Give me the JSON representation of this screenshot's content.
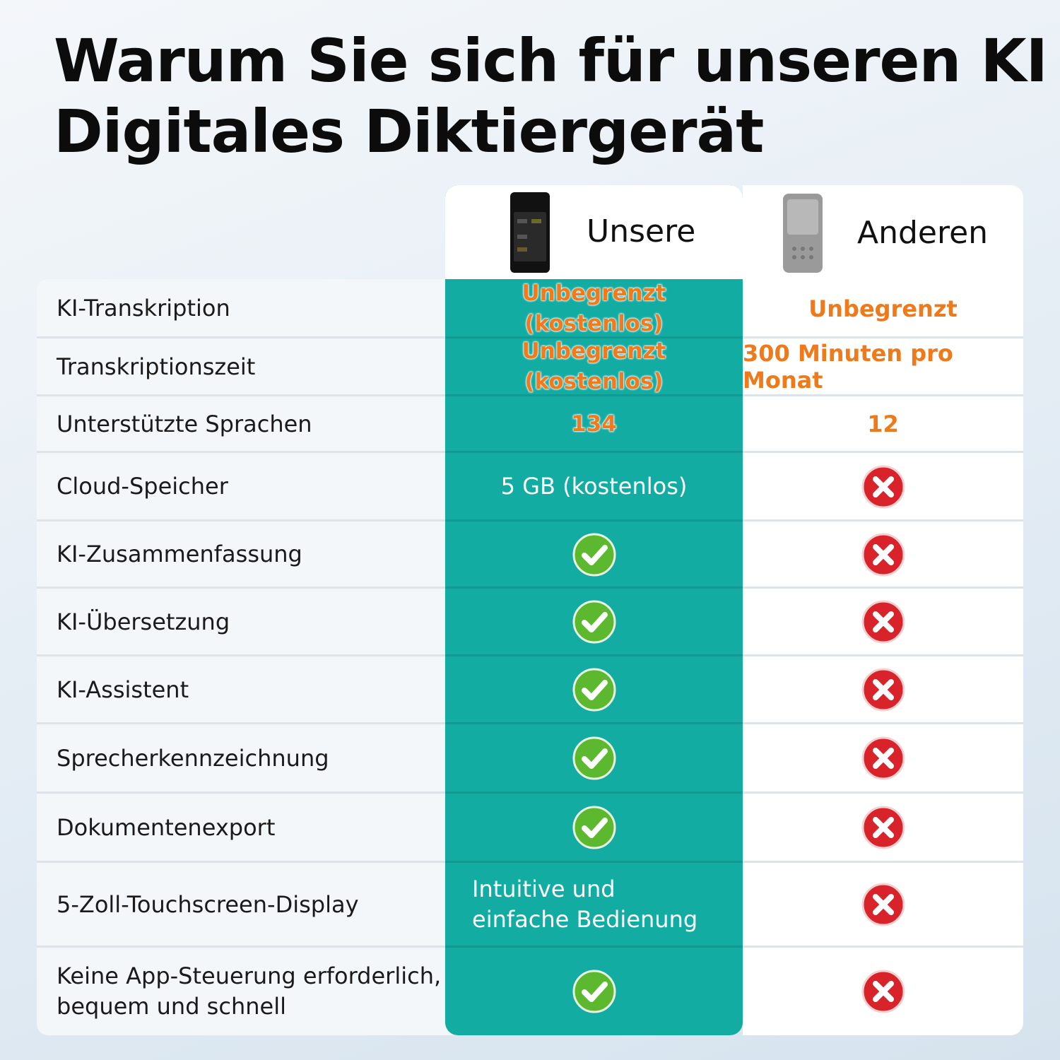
{
  "header": {
    "title_lines": [
      "Warum Sie sich für unseren KI",
      "Digitales Diktiergerät"
    ]
  },
  "table": {
    "columns": [
      "Unsere",
      "Anderen"
    ],
    "rows": [
      {
        "label": "KI-Transkription",
        "ours": "Unbegrenzt (kostenlos)",
        "theirs": "Unbegrenzt"
      },
      {
        "label": "Transkriptionszeit",
        "ours": "Unbegrenzt (kostenlos)",
        "theirs": "300 Minuten pro Monat"
      },
      {
        "label": "Unterstützte Sprachen",
        "ours": "134",
        "theirs": "12"
      },
      {
        "label": "Cloud-Speicher",
        "ours": "5 GB (kostenlos)",
        "theirs": false
      },
      {
        "label": "KI-Zusammenfassung",
        "ours": true,
        "theirs": false
      },
      {
        "label": "KI-Übersetzung",
        "ours": true,
        "theirs": false
      },
      {
        "label": "KI-Assistent",
        "ours": true,
        "theirs": false
      },
      {
        "label": "Sprecherkennzeichnung",
        "ours": true,
        "theirs": false
      },
      {
        "label": "Dokumentenexport",
        "ours": true,
        "theirs": false
      },
      {
        "label": "5-Zoll-Touchscreen-Display",
        "ours": "Intuitive und einfache Bedienung",
        "theirs": false
      },
      {
        "label": "Keine App-Steuerung erforderlich, bequem und schnell",
        "ours": true,
        "theirs": false
      }
    ]
  }
}
